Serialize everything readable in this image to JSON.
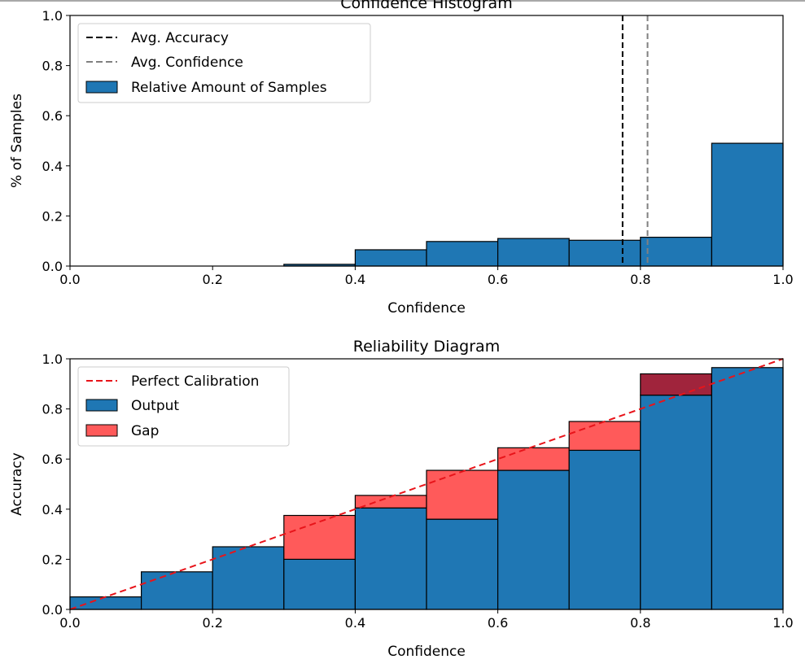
{
  "colors": {
    "output": "#1f77b4",
    "gap": "#ff5a5a",
    "gap_over": "#a0243c",
    "avg_accuracy_line": "#000000",
    "avg_confidence_line": "#808080",
    "perfect_calibration_line": "#e8141a",
    "edge": "#000000"
  },
  "chart_data": [
    {
      "type": "bar",
      "title": "Confidence Histogram",
      "xlabel": "Confidence",
      "ylabel": "% of Samples",
      "xlim": [
        0.0,
        1.0
      ],
      "ylim": [
        0.0,
        1.0
      ],
      "xticks": [
        "0.0",
        "0.2",
        "0.4",
        "0.6",
        "0.8",
        "1.0"
      ],
      "yticks": [
        "0.0",
        "0.2",
        "0.4",
        "0.6",
        "0.8",
        "1.0"
      ],
      "grid": false,
      "legend_position": "top-left",
      "bin_edges": [
        0.0,
        0.1,
        0.2,
        0.3,
        0.4,
        0.5,
        0.6,
        0.7,
        0.8,
        0.9,
        1.0
      ],
      "series": [
        {
          "name": "Relative Amount of Samples",
          "values": [
            0.0,
            0.0,
            0.0,
            0.007,
            0.065,
            0.098,
            0.11,
            0.103,
            0.115,
            0.49
          ]
        }
      ],
      "vlines": [
        {
          "name": "Avg. Accuracy",
          "x": 0.775,
          "style": "dashed"
        },
        {
          "name": "Avg. Confidence",
          "x": 0.81,
          "style": "dashed"
        }
      ]
    },
    {
      "type": "bar",
      "title": "Reliability Diagram",
      "xlabel": "Confidence",
      "ylabel": "Accuracy",
      "xlim": [
        0.0,
        1.0
      ],
      "ylim": [
        0.0,
        1.0
      ],
      "xticks": [
        "0.0",
        "0.2",
        "0.4",
        "0.6",
        "0.8",
        "1.0"
      ],
      "yticks": [
        "0.0",
        "0.2",
        "0.4",
        "0.6",
        "0.8",
        "1.0"
      ],
      "grid": false,
      "legend_position": "top-left",
      "bin_edges": [
        0.0,
        0.1,
        0.2,
        0.3,
        0.4,
        0.5,
        0.6,
        0.7,
        0.8,
        0.9,
        1.0
      ],
      "series": [
        {
          "name": "Output",
          "values": [
            0.05,
            0.15,
            0.25,
            0.2,
            0.405,
            0.36,
            0.555,
            0.635,
            0.855,
            0.965
          ]
        },
        {
          "name": "Gap",
          "values": [
            0.05,
            0.15,
            0.25,
            0.375,
            0.455,
            0.555,
            0.645,
            0.75,
            0.94,
            0.965
          ]
        }
      ],
      "lines": [
        {
          "name": "Perfect Calibration",
          "x": [
            0.0,
            1.0
          ],
          "y": [
            0.0,
            1.0
          ],
          "style": "dashed"
        }
      ]
    }
  ]
}
